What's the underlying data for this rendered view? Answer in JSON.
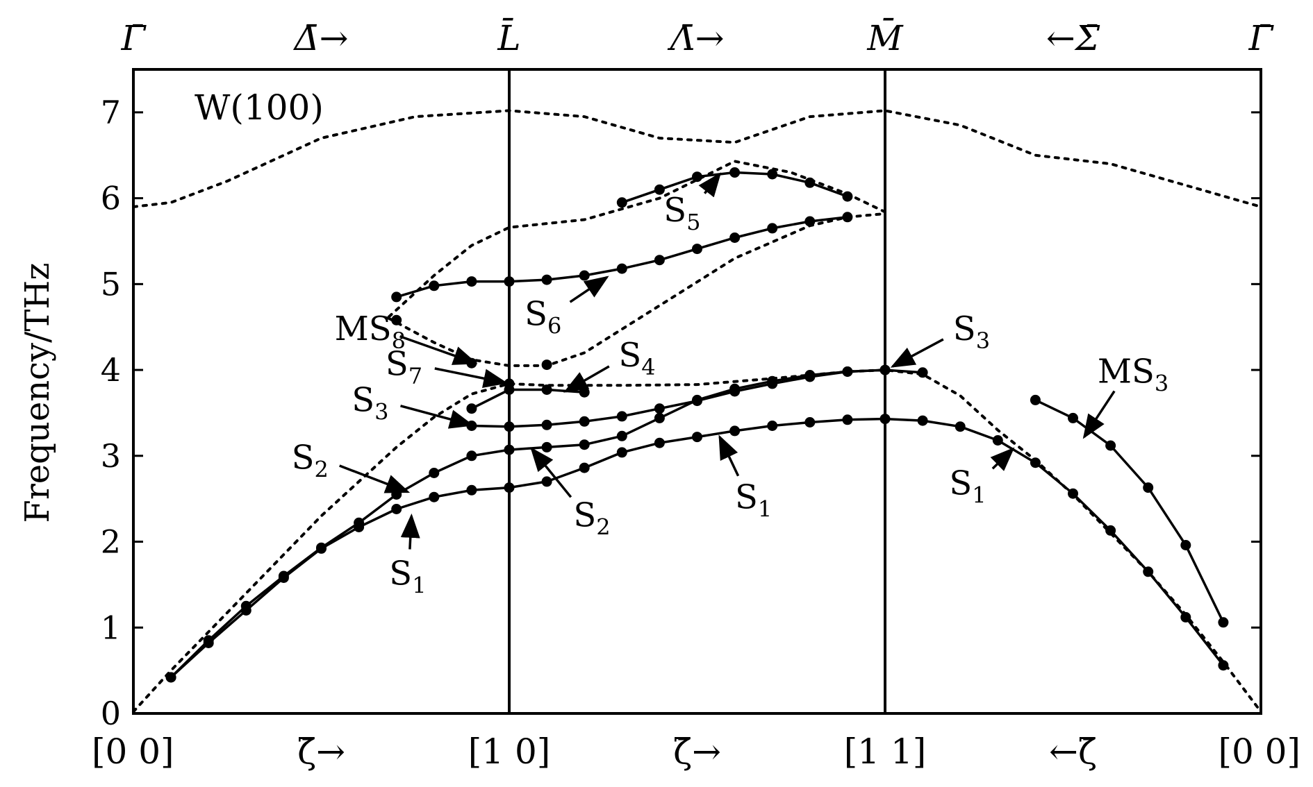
{
  "chart_data": {
    "type": "line",
    "title": "W(100)",
    "ylabel": "Frequency/THz",
    "ylim": [
      0,
      7.5
    ],
    "xlim": [
      0,
      3
    ],
    "yticks": [
      0,
      1,
      2,
      3,
      4,
      5,
      6,
      7
    ],
    "ytick_labels": [
      "0",
      "1",
      "2",
      "3",
      "4",
      "5",
      "6",
      "7"
    ],
    "bottom_labels": [
      {
        "x": 0,
        "text": "[0 0]"
      },
      {
        "x": 0.5,
        "text": "ζ̄→"
      },
      {
        "x": 1,
        "text": "[1 0]"
      },
      {
        "x": 1.5,
        "text": "ζ̄→"
      },
      {
        "x": 2,
        "text": "[1 1]"
      },
      {
        "x": 2.5,
        "text": "←ζ̄"
      },
      {
        "x": 3,
        "text": "[0 0]"
      }
    ],
    "top_labels": [
      {
        "x": 0,
        "text": "Γ̄"
      },
      {
        "x": 0.5,
        "text": "Δ̄→"
      },
      {
        "x": 1,
        "text": "L̄"
      },
      {
        "x": 1.5,
        "text": "Λ̄→"
      },
      {
        "x": 2,
        "text": "M̄"
      },
      {
        "x": 2.5,
        "text": "←Σ̄"
      },
      {
        "x": 3,
        "text": "Γ̄"
      }
    ],
    "vlines": [
      1,
      2
    ],
    "bulk_edges": [
      {
        "points": [
          [
            0,
            5.9
          ],
          [
            0.1,
            5.95
          ],
          [
            0.25,
            6.2
          ],
          [
            0.5,
            6.7
          ],
          [
            0.75,
            6.95
          ],
          [
            1,
            7.02
          ],
          [
            1.2,
            6.95
          ],
          [
            1.4,
            6.7
          ],
          [
            1.6,
            6.65
          ],
          [
            1.8,
            6.95
          ],
          [
            2,
            7.02
          ],
          [
            2.2,
            6.85
          ],
          [
            2.4,
            6.5
          ],
          [
            2.6,
            6.4
          ],
          [
            2.8,
            6.15
          ],
          [
            3,
            5.9
          ]
        ]
      },
      {
        "points": [
          [
            0.68,
            4.62
          ],
          [
            0.8,
            5.1
          ],
          [
            0.9,
            5.45
          ],
          [
            1,
            5.66
          ],
          [
            1.2,
            5.75
          ],
          [
            1.4,
            6.0
          ],
          [
            1.6,
            6.43
          ],
          [
            1.75,
            6.3
          ],
          [
            1.9,
            6.05
          ],
          [
            2,
            5.84
          ]
        ]
      },
      {
        "points": [
          [
            0.68,
            4.6
          ],
          [
            0.8,
            4.32
          ],
          [
            0.9,
            4.12
          ],
          [
            1,
            4.05
          ],
          [
            1.1,
            4.05
          ],
          [
            1.2,
            4.2
          ],
          [
            1.4,
            4.75
          ],
          [
            1.6,
            5.3
          ],
          [
            1.8,
            5.68
          ],
          [
            1.9,
            5.78
          ],
          [
            2,
            5.82
          ]
        ]
      },
      {
        "points": [
          [
            0,
            0.02
          ],
          [
            0.1,
            0.5
          ],
          [
            0.2,
            0.95
          ],
          [
            0.3,
            1.4
          ],
          [
            0.4,
            1.85
          ],
          [
            0.5,
            2.3
          ],
          [
            0.6,
            2.7
          ],
          [
            0.7,
            3.1
          ],
          [
            0.8,
            3.45
          ],
          [
            0.9,
            3.72
          ],
          [
            1,
            3.84
          ],
          [
            1.1,
            3.82
          ],
          [
            1.3,
            3.82
          ],
          [
            1.5,
            3.83
          ],
          [
            1.7,
            3.9
          ],
          [
            1.9,
            3.98
          ],
          [
            2,
            4.0
          ],
          [
            2.1,
            3.95
          ],
          [
            2.2,
            3.7
          ],
          [
            2.3,
            3.3
          ],
          [
            2.4,
            2.95
          ],
          [
            2.5,
            2.55
          ],
          [
            2.6,
            2.1
          ],
          [
            2.7,
            1.65
          ],
          [
            2.8,
            1.15
          ],
          [
            2.9,
            0.6
          ],
          [
            3,
            0.02
          ]
        ]
      }
    ],
    "series": [
      {
        "points": [
          [
            0.1,
            0.42
          ],
          [
            0.2,
            0.82
          ],
          [
            0.3,
            1.2
          ],
          [
            0.4,
            1.58
          ],
          [
            0.5,
            1.92
          ],
          [
            0.6,
            2.17
          ],
          [
            0.7,
            2.38
          ],
          [
            0.8,
            2.52
          ],
          [
            0.9,
            2.6
          ],
          [
            1,
            2.63
          ],
          [
            1.1,
            2.7
          ],
          [
            1.2,
            2.86
          ],
          [
            1.3,
            3.04
          ],
          [
            1.4,
            3.15
          ],
          [
            1.5,
            3.22
          ],
          [
            1.6,
            3.29
          ],
          [
            1.7,
            3.35
          ],
          [
            1.8,
            3.39
          ],
          [
            1.9,
            3.42
          ],
          [
            2,
            3.43
          ],
          [
            2.1,
            3.41
          ],
          [
            2.2,
            3.34
          ],
          [
            2.3,
            3.18
          ],
          [
            2.4,
            2.92
          ],
          [
            2.5,
            2.56
          ],
          [
            2.6,
            2.13
          ],
          [
            2.7,
            1.65
          ],
          [
            2.8,
            1.12
          ],
          [
            2.9,
            0.56
          ]
        ]
      },
      {
        "points": [
          [
            0.1,
            0.42
          ],
          [
            0.2,
            0.85
          ],
          [
            0.3,
            1.25
          ],
          [
            0.4,
            1.6
          ],
          [
            0.5,
            1.93
          ],
          [
            0.6,
            2.22
          ],
          [
            0.7,
            2.55
          ],
          [
            0.8,
            2.8
          ],
          [
            0.9,
            3.0
          ],
          [
            1,
            3.07
          ],
          [
            1.1,
            3.1
          ],
          [
            1.2,
            3.13
          ],
          [
            1.3,
            3.23
          ],
          [
            1.4,
            3.44
          ],
          [
            1.5,
            3.65
          ],
          [
            1.6,
            3.78
          ],
          [
            1.7,
            3.87
          ],
          [
            1.8,
            3.94
          ],
          [
            1.9,
            3.98
          ],
          [
            2,
            4.0
          ],
          [
            2.1,
            3.97
          ]
        ]
      },
      {
        "points": [
          [
            0.9,
            3.35
          ],
          [
            1,
            3.34
          ],
          [
            1.1,
            3.36
          ],
          [
            1.2,
            3.4
          ],
          [
            1.3,
            3.46
          ],
          [
            1.4,
            3.55
          ],
          [
            1.5,
            3.64
          ],
          [
            1.6,
            3.75
          ],
          [
            1.7,
            3.84
          ],
          [
            1.8,
            3.92
          ],
          [
            1.9,
            3.98
          ],
          [
            2,
            4.0
          ]
        ]
      },
      {
        "points": [
          [
            0.9,
            3.55
          ],
          [
            1,
            3.77
          ],
          [
            1.1,
            3.77
          ],
          [
            1.2,
            3.74
          ]
        ]
      },
      {
        "points": [
          [
            1.3,
            5.95
          ],
          [
            1.4,
            6.1
          ],
          [
            1.5,
            6.25
          ],
          [
            1.6,
            6.3
          ],
          [
            1.7,
            6.28
          ],
          [
            1.8,
            6.18
          ],
          [
            1.9,
            6.02
          ]
        ]
      },
      {
        "points": [
          [
            0.7,
            4.85
          ],
          [
            0.8,
            4.98
          ],
          [
            0.9,
            5.03
          ],
          [
            1,
            5.03
          ],
          [
            1.1,
            5.05
          ],
          [
            1.2,
            5.1
          ],
          [
            1.3,
            5.18
          ],
          [
            1.4,
            5.28
          ],
          [
            1.5,
            5.41
          ],
          [
            1.6,
            5.54
          ],
          [
            1.7,
            5.65
          ],
          [
            1.8,
            5.73
          ],
          [
            1.9,
            5.78
          ]
        ]
      },
      {
        "points": [
          [
            2.4,
            3.65
          ],
          [
            2.5,
            3.44
          ],
          [
            2.6,
            3.12
          ],
          [
            2.7,
            2.63
          ],
          [
            2.8,
            1.96
          ],
          [
            2.9,
            1.06
          ]
        ]
      }
    ],
    "isolated_points": [
      [
        0.7,
        4.58
      ],
      [
        0.9,
        4.08
      ],
      [
        1,
        3.84
      ],
      [
        1.1,
        4.06
      ]
    ],
    "annotations": [
      {
        "text": "S",
        "sub": "1",
        "tx": 0.73,
        "ty": 1.5,
        "ax": 0.74,
        "ay": 2.3
      },
      {
        "text": "S",
        "sub": "2",
        "tx": 0.47,
        "ty": 2.85,
        "ax": 0.73,
        "ay": 2.58
      },
      {
        "text": "S",
        "sub": "3",
        "tx": 0.63,
        "ty": 3.52,
        "ax": 0.9,
        "ay": 3.36
      },
      {
        "text": "S",
        "sub": "7",
        "tx": 0.72,
        "ty": 3.94,
        "ax": 0.99,
        "ay": 3.85
      },
      {
        "text": "MS",
        "sub": "8",
        "tx": 0.63,
        "ty": 4.35,
        "ax": 0.91,
        "ay": 4.08
      },
      {
        "text": "S",
        "sub": "2",
        "tx": 1.22,
        "ty": 2.18,
        "ax": 1.06,
        "ay": 3.08
      },
      {
        "text": "S",
        "sub": "4",
        "tx": 1.34,
        "ty": 4.04,
        "ax": 1.15,
        "ay": 3.75
      },
      {
        "text": "S",
        "sub": "6",
        "tx": 1.09,
        "ty": 4.52,
        "ax": 1.26,
        "ay": 5.08
      },
      {
        "text": "S",
        "sub": "5",
        "tx": 1.46,
        "ty": 5.73,
        "ax": 1.56,
        "ay": 6.28
      },
      {
        "text": "S",
        "sub": "1",
        "tx": 1.65,
        "ty": 2.39,
        "ax": 1.56,
        "ay": 3.22
      },
      {
        "text": "S",
        "sub": "3",
        "tx": 2.23,
        "ty": 4.35,
        "ax": 2.02,
        "ay": 4.04
      },
      {
        "text": "S",
        "sub": "1",
        "tx": 2.22,
        "ty": 2.55,
        "ax": 2.34,
        "ay": 3.08
      },
      {
        "text": "MS",
        "sub": "3",
        "tx": 2.66,
        "ty": 3.85,
        "ax": 2.53,
        "ay": 3.22
      }
    ]
  }
}
